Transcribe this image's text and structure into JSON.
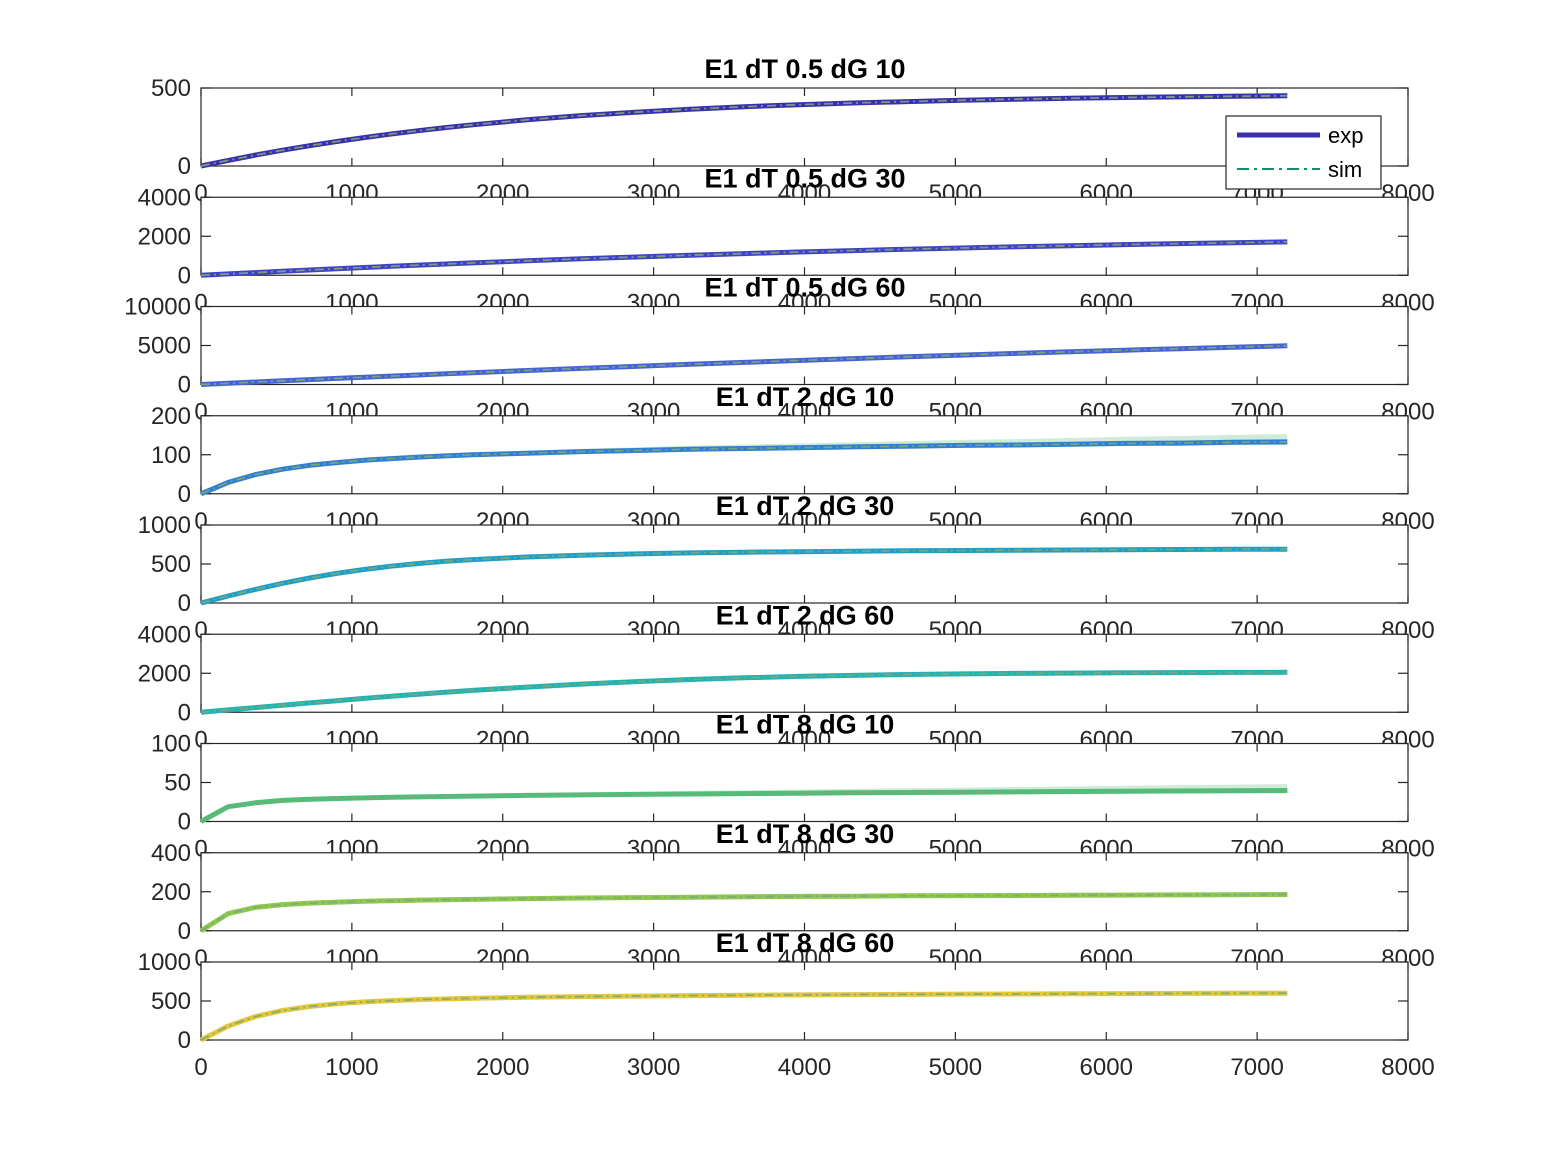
{
  "chart_data": {
    "type": "line",
    "layout": "9 stacked subplots",
    "legend": {
      "placement": "top-right of first subplot",
      "entries": [
        "exp",
        "sim"
      ]
    },
    "xlim": [
      0,
      8000
    ],
    "xticks": [
      0,
      1000,
      2000,
      3000,
      4000,
      5000,
      6000,
      7000,
      8000
    ],
    "x": [
      0,
      180,
      360,
      540,
      720,
      900,
      1080,
      1260,
      1440,
      1620,
      1800,
      2160,
      2520,
      2880,
      3240,
      3600,
      3960,
      4320,
      4680,
      5040,
      5400,
      5760,
      6120,
      6480,
      6840,
      7200
    ],
    "subplots": [
      {
        "title": "E1 dT 0.5 dG 10",
        "ylim": [
          0,
          500
        ],
        "yticks": [
          0,
          500
        ],
        "color": "#3a2fae",
        "exp_values": [
          0,
          36,
          70,
          101,
          130,
          157,
          182,
          205,
          226,
          246,
          264,
          296,
          323,
          345,
          364,
          380,
          393,
          404,
          413,
          421,
          428,
          434,
          439,
          443,
          447,
          450
        ],
        "band": [
          0,
          0,
          0,
          1,
          1,
          2,
          2,
          3,
          3,
          4,
          5,
          6,
          7,
          8,
          9,
          10,
          11,
          12,
          13,
          14,
          15,
          16,
          17,
          18,
          19,
          20
        ]
      },
      {
        "title": "E1 dT 0.5 dG 30",
        "ylim": [
          0,
          4000
        ],
        "yticks": [
          0,
          2000,
          4000
        ],
        "color": "#4040c8",
        "exp_values": [
          0,
          70,
          138,
          205,
          271,
          335,
          397,
          458,
          518,
          576,
          632,
          740,
          842,
          937,
          1027,
          1111,
          1190,
          1264,
          1334,
          1399,
          1460,
          1517,
          1571,
          1621,
          1668,
          1712
        ],
        "band": [
          0,
          1,
          1,
          2,
          2,
          3,
          3,
          4,
          4,
          5,
          5,
          6,
          7,
          8,
          9,
          10,
          11,
          12,
          13,
          14,
          15,
          16,
          17,
          18,
          19,
          20
        ]
      },
      {
        "title": "E1 dT 0.5 dG 60",
        "ylim": [
          0,
          10000
        ],
        "yticks": [
          0,
          5000,
          10000
        ],
        "color": "#4662d8",
        "exp_values": [
          0,
          160,
          318,
          474,
          628,
          780,
          930,
          1078,
          1224,
          1368,
          1510,
          1789,
          2061,
          2326,
          2584,
          2835,
          3079,
          3316,
          3546,
          3769,
          3985,
          4194,
          4396,
          4591,
          4779,
          4960
        ],
        "band": [
          0,
          2,
          3,
          5,
          6,
          8,
          9,
          11,
          12,
          14,
          15,
          18,
          21,
          24,
          27,
          30,
          33,
          36,
          39,
          42,
          45,
          48,
          51,
          54,
          57,
          60
        ]
      },
      {
        "title": "E1 dT 2 dG 10",
        "ylim": [
          0,
          200
        ],
        "yticks": [
          0,
          100,
          200
        ],
        "color": "#2f7fd4",
        "exp_values": [
          0,
          29,
          49,
          63,
          73,
          80,
          86,
          90,
          94,
          97,
          100,
          104,
          108,
          111,
          114,
          116,
          118,
          120,
          122,
          124,
          125,
          127,
          129,
          130,
          132,
          133
        ],
        "band": [
          0,
          0.5,
          1,
          1.5,
          2,
          2.5,
          3,
          3.5,
          4,
          4.5,
          5,
          6,
          7,
          8,
          9,
          10,
          11,
          12,
          13,
          14,
          15,
          16,
          17,
          18,
          19,
          20
        ]
      },
      {
        "title": "E1 dT 2 dG 30",
        "ylim": [
          0,
          1000
        ],
        "yticks": [
          0,
          500,
          1000
        ],
        "color": "#1e9fc8",
        "exp_values": [
          0,
          90,
          174,
          252,
          320,
          380,
          430,
          472,
          506,
          534,
          556,
          590,
          613,
          630,
          642,
          651,
          658,
          664,
          669,
          673,
          677,
          680,
          683,
          686,
          688,
          690
        ],
        "band": [
          0,
          1,
          1,
          2,
          2,
          3,
          3,
          4,
          4,
          5,
          5,
          6,
          7,
          8,
          9,
          10,
          11,
          12,
          13,
          14,
          15,
          16,
          17,
          18,
          19,
          20
        ]
      },
      {
        "title": "E1 dT 2 dG 60",
        "ylim": [
          0,
          4000
        ],
        "yticks": [
          0,
          2000,
          4000
        ],
        "color": "#22b2b2",
        "exp_values": [
          0,
          120,
          240,
          360,
          478,
          594,
          708,
          818,
          924,
          1024,
          1118,
          1290,
          1442,
          1572,
          1680,
          1768,
          1838,
          1892,
          1934,
          1966,
          1990,
          2008,
          2022,
          2033,
          2042,
          2050
        ],
        "band": [
          0,
          2,
          3,
          5,
          6,
          8,
          9,
          11,
          12,
          14,
          15,
          18,
          21,
          24,
          27,
          30,
          33,
          36,
          39,
          42,
          45,
          48,
          51,
          54,
          57,
          60
        ]
      },
      {
        "title": "E1 dT 8 dG 10",
        "ylim": [
          0,
          100
        ],
        "yticks": [
          0,
          50,
          100
        ],
        "color": "#4dbf78",
        "exp_values": [
          0,
          19,
          24,
          27,
          28.5,
          29.5,
          30.3,
          31,
          31.6,
          32.1,
          32.6,
          33.4,
          34.1,
          34.7,
          35.3,
          35.8,
          36.3,
          36.8,
          37.2,
          37.6,
          38,
          38.4,
          38.8,
          39.1,
          39.4,
          39.7
        ],
        "band": [
          0,
          0.5,
          0.7,
          0.9,
          1.1,
          1.3,
          1.5,
          1.7,
          1.9,
          2.1,
          2.3,
          2.7,
          3.1,
          3.5,
          3.9,
          4.3,
          4.7,
          5.1,
          5.5,
          5.9,
          6.3,
          6.7,
          7.1,
          7.5,
          7.9,
          8.3
        ]
      },
      {
        "title": "E1 dT 8 dG 30",
        "ylim": [
          0,
          400
        ],
        "yticks": [
          0,
          200,
          400
        ],
        "color": "#8ec850",
        "exp_values": [
          0,
          88,
          120,
          134,
          142,
          147,
          151,
          154,
          157,
          159,
          161,
          165,
          168,
          170,
          172,
          174,
          176,
          177,
          179,
          180,
          181,
          182,
          183,
          184,
          185,
          186
        ],
        "band": [
          0,
          1,
          1,
          2,
          2,
          2,
          3,
          3,
          3,
          4,
          4,
          4,
          5,
          5,
          5,
          6,
          6,
          6,
          7,
          7,
          7,
          8,
          8,
          8,
          9,
          9
        ]
      },
      {
        "title": "E1 dT 8 dG 60",
        "ylim": [
          0,
          1000
        ],
        "yticks": [
          0,
          500,
          1000
        ],
        "color": "#e2c83a",
        "exp_values": [
          0,
          180,
          300,
          378,
          430,
          464,
          488,
          505,
          518,
          527,
          535,
          547,
          556,
          563,
          569,
          574,
          578,
          582,
          585,
          588,
          590,
          593,
          595,
          597,
          599,
          600
        ],
        "band": [
          0,
          2,
          3,
          4,
          5,
          6,
          7,
          8,
          9,
          10,
          10,
          11,
          12,
          13,
          14,
          15,
          16,
          17,
          18,
          19,
          20,
          21,
          22,
          23,
          24,
          25
        ]
      }
    ]
  }
}
